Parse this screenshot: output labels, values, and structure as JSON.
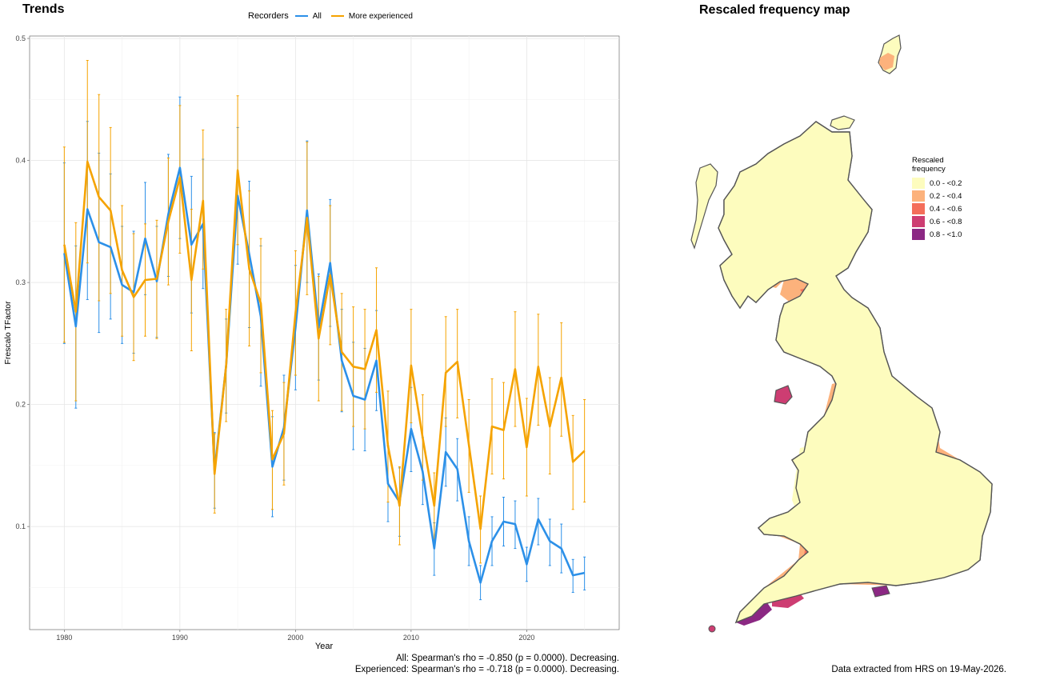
{
  "trends_title": "Trends",
  "map_title": "Rescaled frequency map",
  "legend": {
    "title": "Recorders",
    "all_label": "All",
    "exp_label": "More experienced"
  },
  "colors": {
    "all": "#2c90e8",
    "exp": "#f5a300"
  },
  "stats": {
    "all": "All: Spearman's rho = -0.850 (p = 0.0000). Decreasing.",
    "exp": "Experienced: Spearman's rho = -0.718 (p = 0.0000). Decreasing."
  },
  "extract_note": "Data extracted from HRS on 19-May-2026.",
  "map_legend": {
    "title": "Rescaled frequency",
    "items": [
      {
        "label": "0.0 - <0.2",
        "color": "#fdfcbe"
      },
      {
        "label": "0.2 - <0.4",
        "color": "#fcb27c"
      },
      {
        "label": "0.4 - <0.6",
        "color": "#f46e5a"
      },
      {
        "label": "0.6 - <0.8",
        "color": "#cd3d72"
      },
      {
        "label": "0.8 - <1.0",
        "color": "#8b2883"
      }
    ]
  },
  "chart_data": {
    "type": "line",
    "xlabel": "Year",
    "ylabel": "Frescalo TFactor",
    "xlim": [
      1977,
      2028
    ],
    "ylim": [
      0.0155,
      0.502
    ],
    "x_ticks": [
      1980,
      1990,
      2000,
      2010,
      2020
    ],
    "y_ticks": [
      0.1,
      0.2,
      0.3,
      0.4,
      0.5
    ],
    "legend_position": "top",
    "grid": true,
    "series": [
      {
        "name": "All",
        "x": [
          1980,
          1981,
          1982,
          1983,
          1984,
          1985,
          1986,
          1987,
          1988,
          1989,
          1990,
          1991,
          1992,
          1993,
          1994,
          1995,
          1996,
          1997,
          1998,
          1999,
          2000,
          2001,
          2002,
          2003,
          2004,
          2005,
          2006,
          2007,
          2008,
          2009,
          2010,
          2011,
          2012,
          2013,
          2014,
          2015,
          2016,
          2017,
          2018,
          2019,
          2020,
          2021,
          2022,
          2023,
          2024,
          2025
        ],
        "y": [
          0.324,
          0.264,
          0.36,
          0.333,
          0.329,
          0.298,
          0.292,
          0.336,
          0.301,
          0.356,
          0.394,
          0.331,
          0.348,
          0.146,
          0.232,
          0.371,
          0.323,
          0.272,
          0.149,
          0.181,
          0.263,
          0.359,
          0.263,
          0.316,
          0.236,
          0.207,
          0.204,
          0.236,
          0.135,
          0.12,
          0.18,
          0.145,
          0.082,
          0.161,
          0.147,
          0.088,
          0.054,
          0.088,
          0.104,
          0.102,
          0.069,
          0.106,
          0.088,
          0.082,
          0.06,
          0.062
        ],
        "lower": [
          0.25,
          0.197,
          0.286,
          0.259,
          0.27,
          0.25,
          0.242,
          0.29,
          0.255,
          0.305,
          0.336,
          0.275,
          0.295,
          0.115,
          0.193,
          0.315,
          0.263,
          0.215,
          0.108,
          0.138,
          0.212,
          0.3,
          0.22,
          0.264,
          0.194,
          0.163,
          0.162,
          0.195,
          0.104,
          0.092,
          0.145,
          0.118,
          0.06,
          0.133,
          0.121,
          0.068,
          0.04,
          0.068,
          0.084,
          0.082,
          0.055,
          0.085,
          0.068,
          0.062,
          0.046,
          0.048
        ],
        "upper": [
          0.398,
          0.33,
          0.432,
          0.406,
          0.389,
          0.346,
          0.342,
          0.382,
          0.346,
          0.405,
          0.452,
          0.387,
          0.401,
          0.177,
          0.27,
          0.427,
          0.383,
          0.33,
          0.19,
          0.224,
          0.314,
          0.416,
          0.307,
          0.368,
          0.278,
          0.251,
          0.246,
          0.277,
          0.166,
          0.148,
          0.214,
          0.173,
          0.103,
          0.189,
          0.172,
          0.108,
          0.068,
          0.108,
          0.124,
          0.121,
          0.083,
          0.123,
          0.106,
          0.102,
          0.073,
          0.075
        ]
      },
      {
        "name": "More experienced",
        "x": [
          1980,
          1981,
          1982,
          1983,
          1984,
          1985,
          1986,
          1987,
          1988,
          1989,
          1990,
          1991,
          1992,
          1993,
          1994,
          1995,
          1996,
          1997,
          1998,
          1999,
          2000,
          2001,
          2002,
          2003,
          2004,
          2005,
          2006,
          2007,
          2008,
          2009,
          2010,
          2011,
          2012,
          2013,
          2014,
          2015,
          2016,
          2017,
          2018,
          2019,
          2020,
          2021,
          2022,
          2023,
          2024,
          2025
        ],
        "y": [
          0.331,
          0.276,
          0.399,
          0.37,
          0.359,
          0.31,
          0.288,
          0.302,
          0.303,
          0.35,
          0.386,
          0.302,
          0.367,
          0.143,
          0.232,
          0.392,
          0.311,
          0.283,
          0.155,
          0.176,
          0.275,
          0.353,
          0.254,
          0.306,
          0.243,
          0.231,
          0.229,
          0.261,
          0.166,
          0.117,
          0.232,
          0.173,
          0.117,
          0.226,
          0.235,
          0.167,
          0.098,
          0.182,
          0.179,
          0.229,
          0.165,
          0.231,
          0.182,
          0.222,
          0.153,
          0.162
        ],
        "lower": [
          0.251,
          0.203,
          0.316,
          0.285,
          0.291,
          0.256,
          0.236,
          0.256,
          0.254,
          0.298,
          0.324,
          0.244,
          0.311,
          0.111,
          0.186,
          0.331,
          0.248,
          0.226,
          0.114,
          0.134,
          0.224,
          0.29,
          0.203,
          0.249,
          0.195,
          0.182,
          0.18,
          0.21,
          0.12,
          0.085,
          0.185,
          0.138,
          0.09,
          0.182,
          0.189,
          0.128,
          0.07,
          0.143,
          0.139,
          0.182,
          0.125,
          0.183,
          0.143,
          0.174,
          0.114,
          0.12
        ],
        "upper": [
          0.411,
          0.349,
          0.482,
          0.454,
          0.427,
          0.363,
          0.34,
          0.348,
          0.351,
          0.402,
          0.445,
          0.36,
          0.425,
          0.176,
          0.278,
          0.453,
          0.375,
          0.336,
          0.195,
          0.218,
          0.326,
          0.415,
          0.305,
          0.363,
          0.291,
          0.28,
          0.278,
          0.312,
          0.211,
          0.149,
          0.278,
          0.208,
          0.144,
          0.272,
          0.278,
          0.204,
          0.125,
          0.221,
          0.218,
          0.276,
          0.205,
          0.274,
          0.222,
          0.267,
          0.191,
          0.204
        ]
      }
    ]
  }
}
